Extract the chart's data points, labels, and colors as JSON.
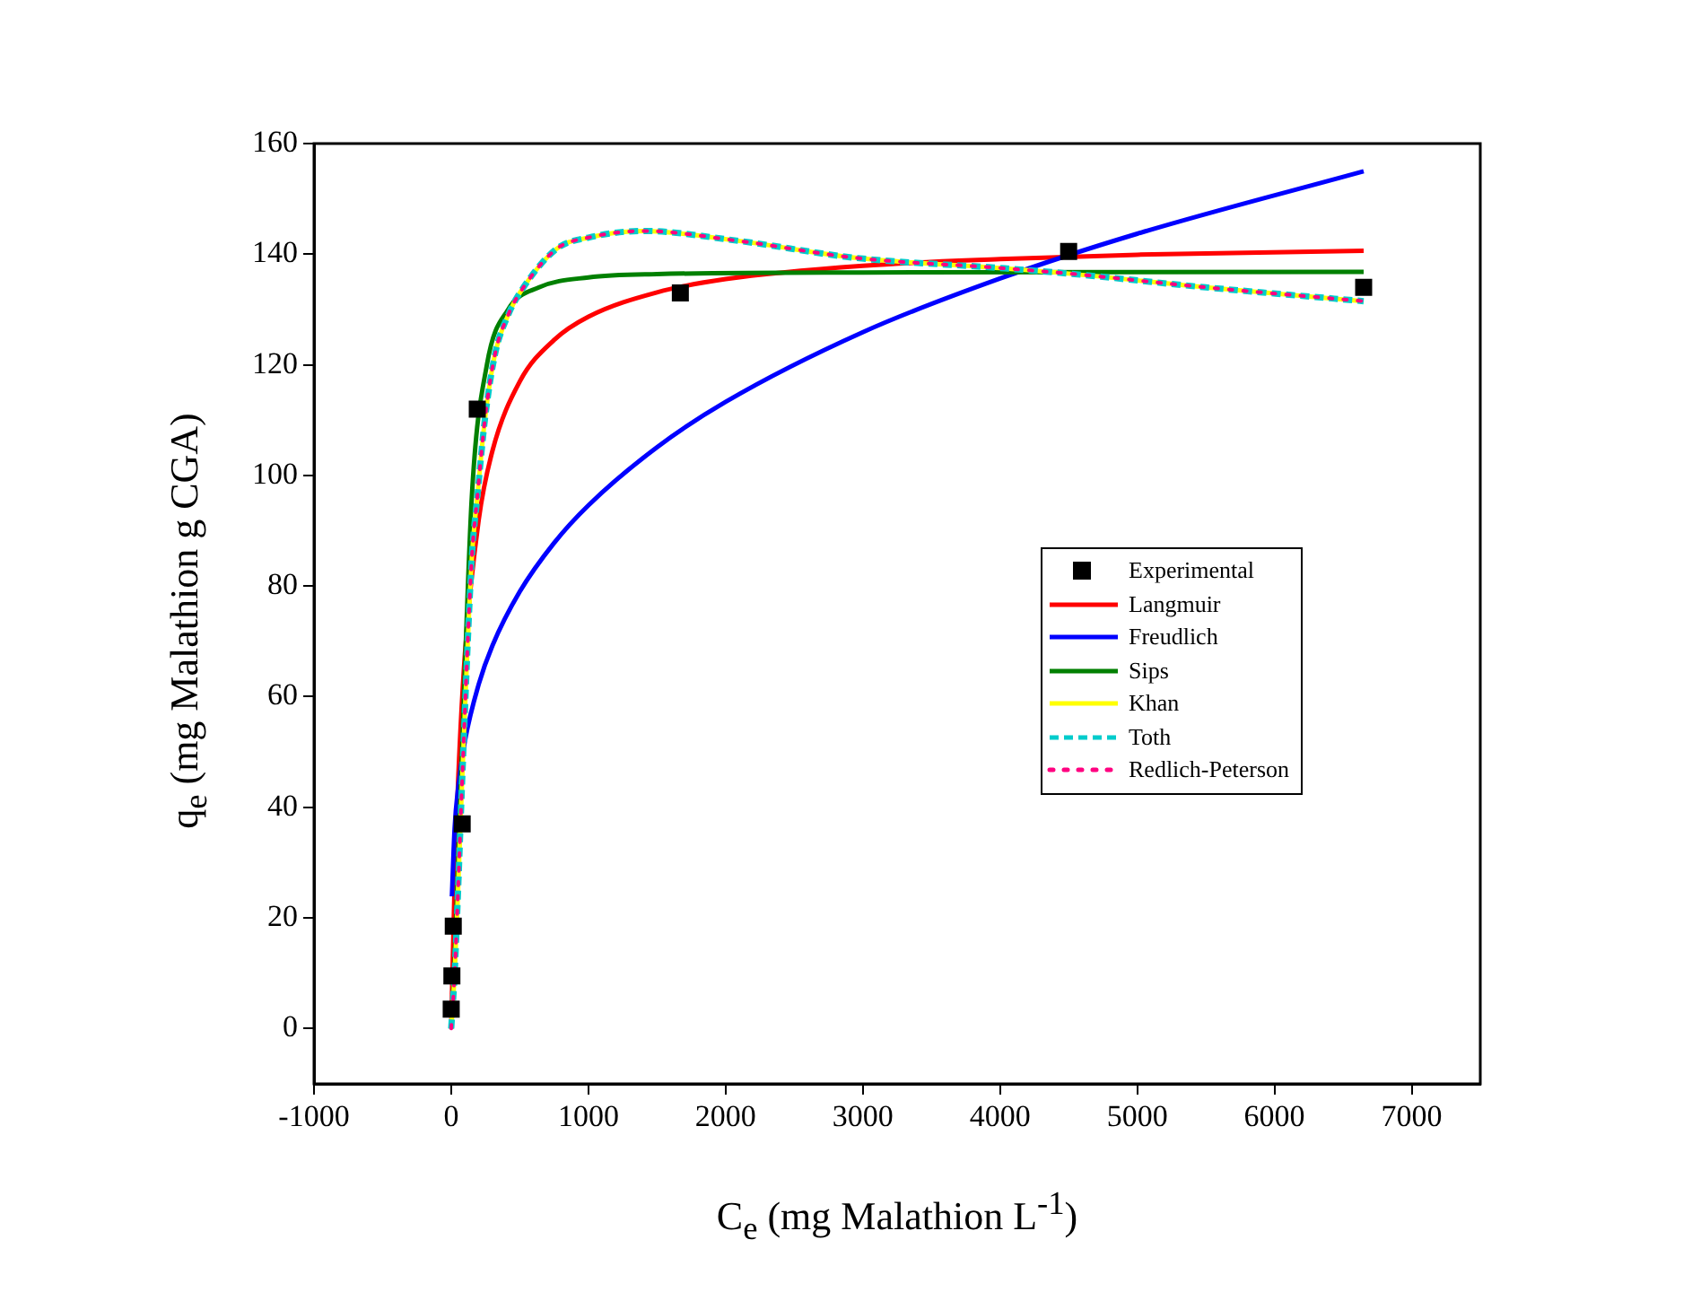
{
  "chart_data": {
    "type": "line",
    "xlabel": "C$_{e}$ (mg Malathion L$^{-1}$)",
    "ylabel": "q$_{e}$ (mg Malathion g CGA)",
    "xlim": [
      -1000,
      7500
    ],
    "xticks": [
      -1000,
      0,
      1000,
      2000,
      3000,
      4000,
      5000,
      6000,
      7000
    ],
    "ylim": [
      -10,
      160
    ],
    "yticks": [
      0,
      20,
      40,
      60,
      80,
      100,
      120,
      140,
      160
    ],
    "grid": false,
    "legend": "right",
    "series": [
      {
        "name": "Experimental",
        "type": "scatter",
        "marker": "square",
        "color": "#000000",
        "x": [
          0,
          5,
          15,
          80,
          190,
          1670,
          4500,
          6650
        ],
        "values": [
          3.5,
          9.5,
          18.5,
          37,
          112,
          133,
          140.5,
          134
        ]
      },
      {
        "name": "Langmuir",
        "type": "line",
        "line_style": "solid",
        "color": "#ff0000",
        "x": [
          0,
          25,
          50,
          100,
          200,
          300,
          500,
          750,
          1000,
          1500,
          2000,
          3000,
          4000,
          5000,
          6650
        ],
        "values": [
          0,
          26.3,
          44.4,
          67.7,
          91.9,
          104.4,
          117,
          124.5,
          128.7,
          133.1,
          135.5,
          137.9,
          139.1,
          139.9,
          140.6
        ]
      },
      {
        "name": "Freudlich",
        "type": "line",
        "line_style": "solid",
        "color": "#0000ff",
        "x": [
          5,
          25,
          50,
          100,
          200,
          300,
          500,
          750,
          1000,
          1500,
          2000,
          3000,
          4000,
          5000,
          6650
        ],
        "values": [
          23.9,
          36.3,
          43.4,
          52,
          62.2,
          69.2,
          79,
          87.8,
          94.6,
          105.1,
          113.3,
          125.9,
          135.6,
          143.7,
          155
        ]
      },
      {
        "name": "Sips",
        "type": "line",
        "line_style": "solid",
        "color": "#008000",
        "x": [
          0,
          25,
          50,
          80,
          150,
          260,
          415,
          640,
          1000,
          1500,
          3000,
          6650
        ],
        "values": [
          0,
          12,
          30,
          51,
          96,
          120,
          130,
          134,
          135.8,
          136.4,
          136.7,
          136.8
        ]
      },
      {
        "name": "Khan",
        "type": "line",
        "line_style": "solid",
        "color": "#ffff00",
        "x": [
          0,
          25,
          50,
          80,
          150,
          190,
          245,
          320,
          415,
          500,
          770,
          1000,
          1400,
          2065,
          2960,
          4000,
          4500,
          5500,
          6650
        ],
        "values": [
          0,
          10,
          25,
          45,
          85,
          96,
          110,
          122,
          129,
          133,
          141,
          143,
          144.2,
          142.5,
          139.3,
          137.5,
          136.5,
          134,
          131.5
        ]
      },
      {
        "name": "Toth",
        "type": "line",
        "line_style": "dashed",
        "color": "#00cccc",
        "x": [
          0,
          25,
          50,
          80,
          150,
          190,
          245,
          320,
          415,
          500,
          770,
          1000,
          1400,
          2065,
          2960,
          4000,
          4500,
          5500,
          6650
        ],
        "values": [
          0,
          10,
          25,
          45,
          85,
          96,
          110,
          122,
          129,
          133,
          141,
          143,
          144.2,
          142.5,
          139.3,
          137.5,
          136.5,
          134,
          131.5
        ]
      },
      {
        "name": "Redlich-Peterson",
        "type": "line",
        "line_style": "dotted",
        "color": "#ff0080",
        "x": [
          0,
          25,
          50,
          80,
          150,
          190,
          245,
          320,
          415,
          500,
          770,
          1000,
          1400,
          2065,
          2960,
          4000,
          4500,
          5500,
          6650
        ],
        "values": [
          0,
          10,
          25,
          45,
          85,
          96,
          110,
          122,
          129,
          133,
          141,
          143,
          144.2,
          142.5,
          139.3,
          137.5,
          136.5,
          134,
          131.5
        ]
      }
    ]
  }
}
